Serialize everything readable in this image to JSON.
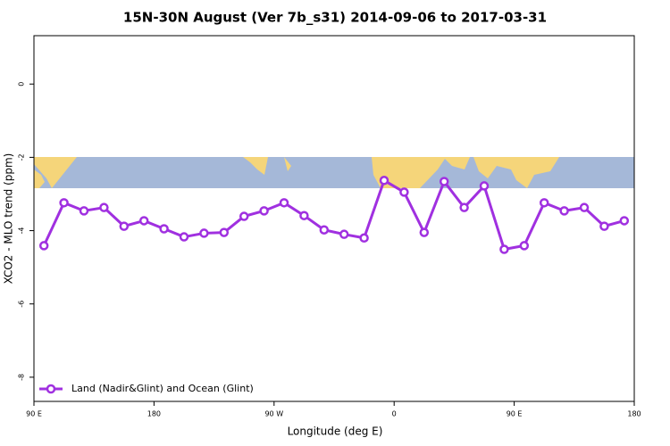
{
  "chart_data": {
    "type": "line",
    "title": "15N-30N August (Ver 7b_s31)   2014-09-06 to 2017-03-31",
    "x_label": "Longitude (deg E)",
    "y_label": "XCO2 - MLO trend (ppm)",
    "x": [
      97.5,
      112.5,
      127.5,
      142.5,
      157.5,
      172.5,
      187.5,
      202.5,
      217.5,
      232.5,
      247.5,
      262.5,
      277.5,
      292.5,
      307.5,
      322.5,
      337.5,
      352.5,
      367.5,
      382.5,
      397.5,
      412.5,
      427.5,
      442.5,
      457.5,
      472.5,
      487.5,
      502.5,
      517.5,
      532.5
    ],
    "series": [
      {
        "name": "Land (Nadir&Glint) and Ocean (Glint)",
        "color": "#a030e0",
        "values": [
          -4.41,
          -3.24,
          -3.46,
          -3.37,
          -3.88,
          -3.73,
          -3.95,
          -4.17,
          -4.07,
          -4.05,
          -3.61,
          -3.46,
          -3.24,
          -3.59,
          -3.98,
          -4.1,
          -4.2,
          -2.63,
          -2.95,
          -4.05,
          -2.66,
          -3.37,
          -2.78,
          -4.51,
          -4.41,
          -3.24,
          -3.46,
          -3.37,
          -3.88,
          -3.73
        ]
      }
    ],
    "xlim": [
      90,
      540
    ],
    "xticks": [
      {
        "value": 90,
        "label": "90 E"
      },
      {
        "value": 180,
        "label": "180"
      },
      {
        "value": 270,
        "label": "90 W"
      },
      {
        "value": 360,
        "label": "0"
      },
      {
        "value": 450,
        "label": "90 E"
      },
      {
        "value": 540,
        "label": "180"
      }
    ],
    "ylim": [
      -8.66,
      1.32
    ],
    "yticks": [
      0,
      -2,
      -4,
      -6,
      -8
    ],
    "legend": "bottom-left"
  }
}
